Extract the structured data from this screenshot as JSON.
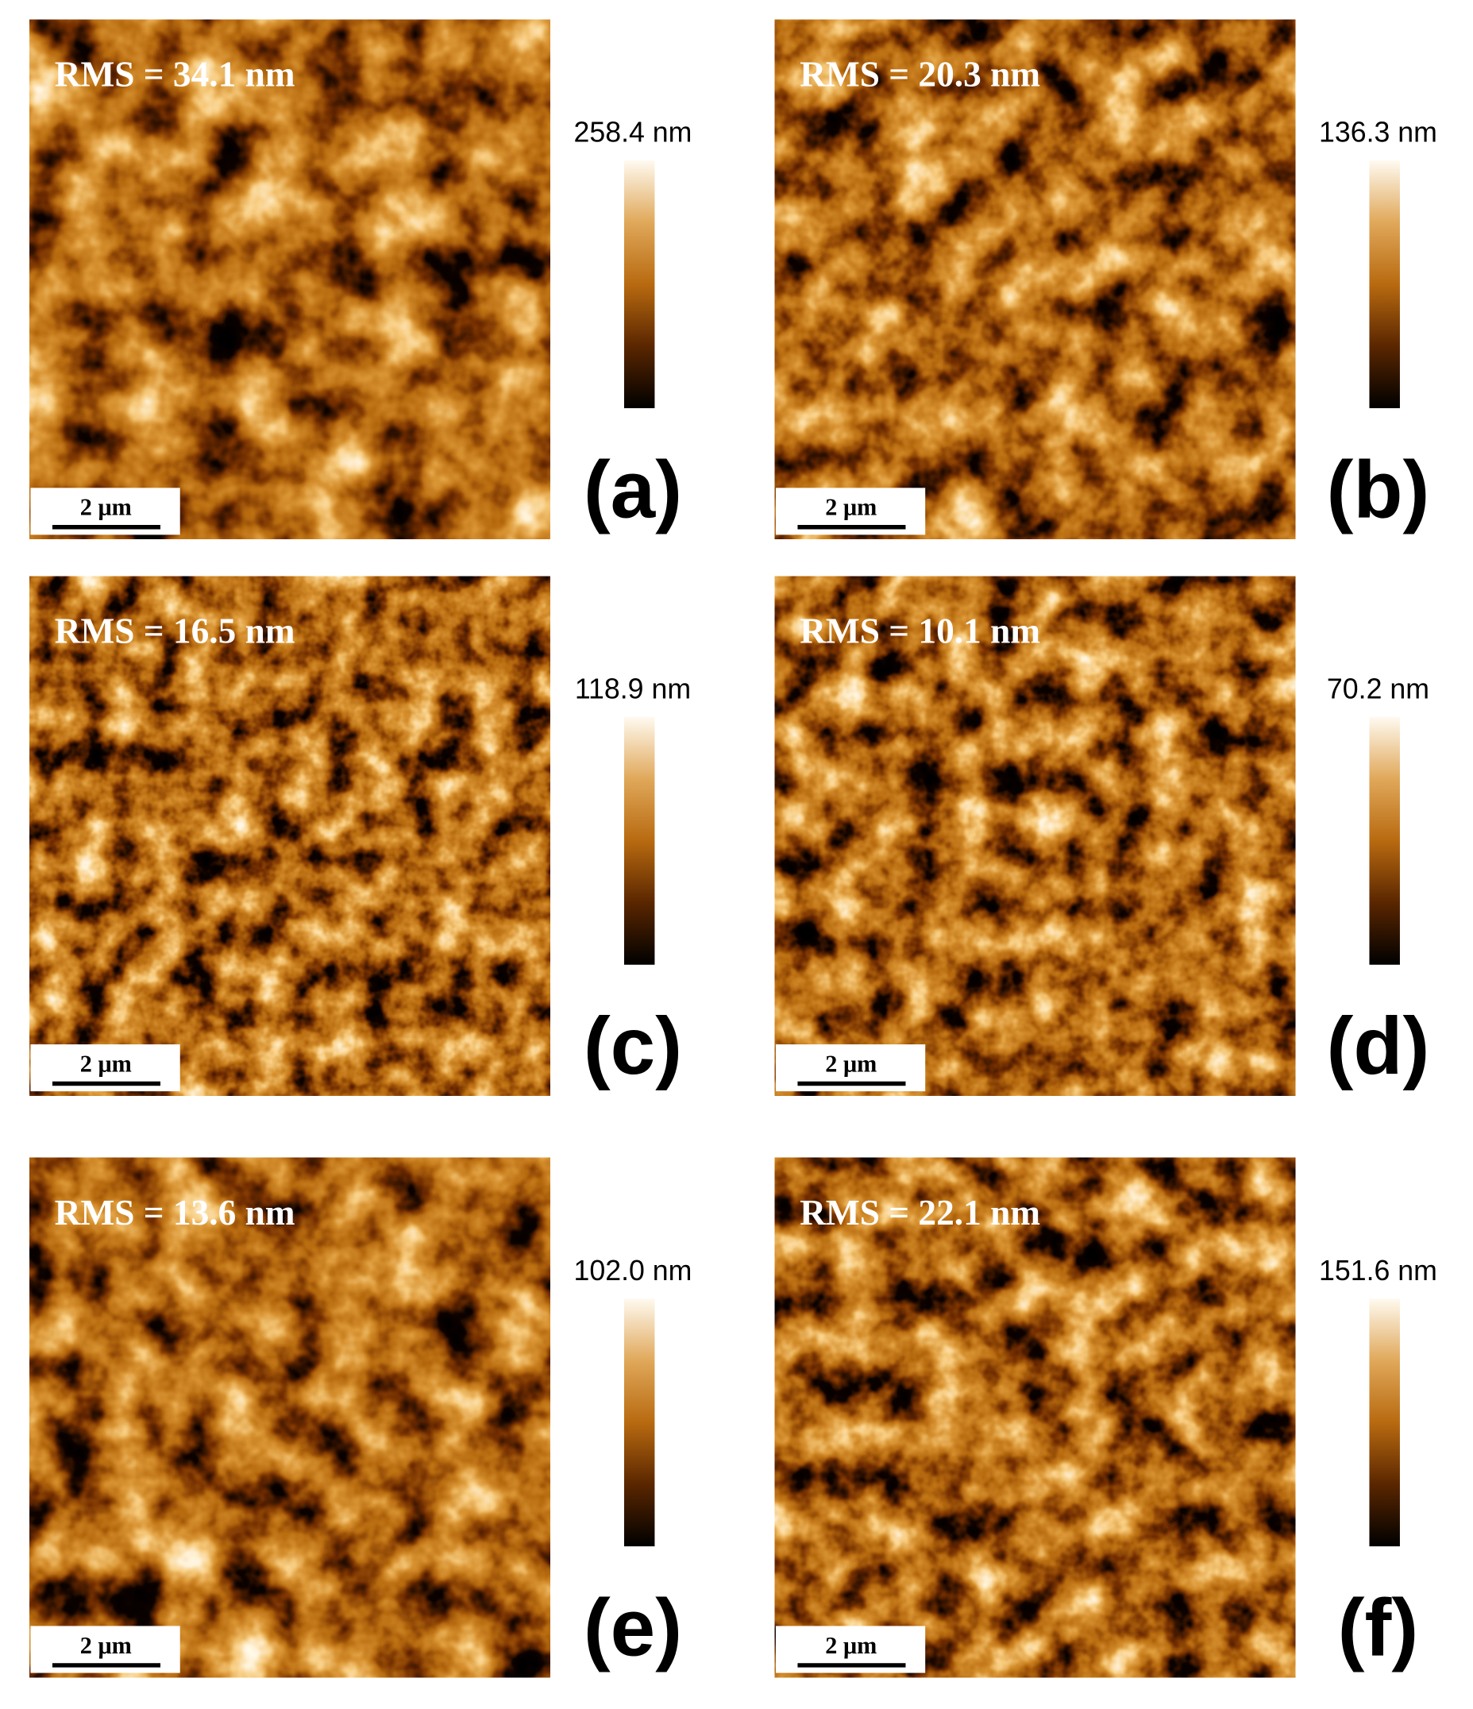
{
  "panels": [
    {
      "rms": "RMS = 34.1 nm",
      "colorbar_max": "258.4 nm",
      "scale_bar": "2 μm",
      "label": "(a)"
    },
    {
      "rms": "RMS = 20.3 nm",
      "colorbar_max": "136.3 nm",
      "scale_bar": "2 μm",
      "label": "(b)"
    },
    {
      "rms": "RMS = 16.5 nm",
      "colorbar_max": "118.9 nm",
      "scale_bar": "2 μm",
      "label": "(c)"
    },
    {
      "rms": "RMS = 10.1 nm",
      "colorbar_max": "70.2 nm",
      "scale_bar": "2 μm",
      "label": "(d)"
    },
    {
      "rms": "RMS = 13.6 nm",
      "colorbar_max": "102.0 nm",
      "scale_bar": "2 μm",
      "label": "(e)"
    },
    {
      "rms": "RMS = 22.1 nm",
      "colorbar_max": "151.6 nm",
      "scale_bar": "2 μm",
      "label": "(f)"
    }
  ]
}
